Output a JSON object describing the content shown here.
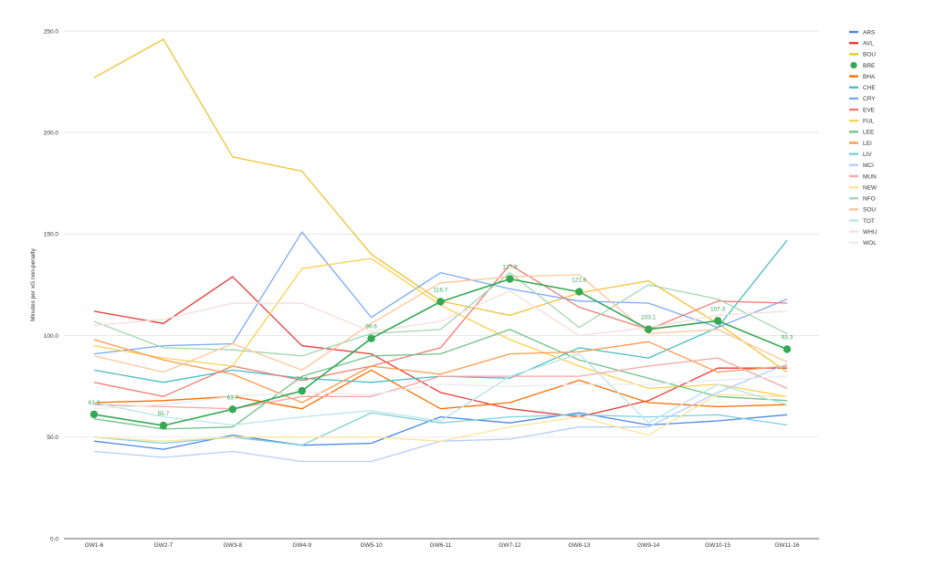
{
  "chart_data": {
    "type": "line",
    "title": "",
    "xlabel": "",
    "ylabel": "Minutes per xG non-penalty",
    "ylim": [
      0,
      250
    ],
    "y_ticks": [
      "0.0",
      "50.0",
      "100.0",
      "150.0",
      "200.0",
      "250.0"
    ],
    "y_tick_values": [
      0,
      50,
      100,
      150,
      200,
      250
    ],
    "grid": true,
    "legend_position": "right",
    "categories": [
      "GW1-6",
      "GW2-7",
      "GW3-8",
      "GW4-9",
      "GW5-10",
      "GW6-11",
      "GW7-12",
      "GW8-13",
      "GW9-14",
      "GW10-15",
      "GW11-16"
    ],
    "highlight_series": "BRE",
    "series": [
      {
        "name": "ARS",
        "color": "#4a86e8",
        "values": [
          48,
          44,
          51,
          46,
          47,
          60,
          57,
          62,
          56,
          58,
          61
        ]
      },
      {
        "name": "AVL",
        "color": "#e53935",
        "values": [
          112,
          106,
          129,
          95,
          91,
          72,
          64,
          60,
          68,
          84,
          84
        ]
      },
      {
        "name": "BOU",
        "color": "#f1c232",
        "values": [
          227,
          246,
          188,
          181,
          140,
          117,
          110,
          121,
          127,
          106,
          82
        ]
      },
      {
        "name": "BRE",
        "color": "#34a853",
        "values": [
          61.2,
          55.7,
          63.7,
          72.8,
          98.6,
          116.7,
          127.9,
          121.6,
          103.1,
          107.3,
          93.3
        ],
        "labels": [
          "61.2",
          "55.7",
          "63.7",
          "72.8",
          "98.6",
          "116.7",
          "127.9",
          "121.6",
          "103.1",
          "107.3",
          "93.3"
        ]
      },
      {
        "name": "BHA",
        "color": "#ff6d01",
        "values": [
          67,
          68,
          70,
          64,
          83,
          64,
          67,
          78,
          67,
          65,
          66
        ]
      },
      {
        "name": "CHE",
        "color": "#46bdc6",
        "values": [
          83,
          77,
          83,
          79,
          77,
          80,
          79,
          94,
          89,
          104,
          147
        ]
      },
      {
        "name": "CRY",
        "color": "#7baaf7",
        "values": [
          91,
          95,
          96,
          151,
          109,
          131,
          123,
          117,
          116,
          104,
          118
        ]
      },
      {
        "name": "EVE",
        "color": "#f07b72",
        "values": [
          77,
          70,
          85,
          78,
          85,
          94,
          135,
          114,
          103,
          117,
          116
        ]
      },
      {
        "name": "FUL",
        "color": "#fcd04f",
        "values": [
          95,
          89,
          85,
          133,
          138,
          115,
          98,
          85,
          74,
          76,
          70
        ]
      },
      {
        "name": "LEE",
        "color": "#71c287",
        "values": [
          59,
          54,
          55,
          80,
          90,
          91,
          103,
          88,
          79,
          70,
          68
        ]
      },
      {
        "name": "LEI",
        "color": "#ff994d",
        "values": [
          98,
          88,
          81,
          67,
          85,
          81,
          91,
          92,
          97,
          82,
          85
        ]
      },
      {
        "name": "LIV",
        "color": "#7ed1d7",
        "values": [
          50,
          47,
          50,
          46,
          62,
          57,
          60,
          61,
          60,
          61,
          56
        ]
      },
      {
        "name": "MCI",
        "color": "#b3cefb",
        "values": [
          43,
          40,
          43,
          38,
          38,
          48,
          49,
          55,
          55,
          72,
          86
        ]
      },
      {
        "name": "MUN",
        "color": "#f7a7a2",
        "values": [
          66,
          65,
          64,
          70,
          70,
          80,
          80,
          80,
          85,
          89,
          74
        ]
      },
      {
        "name": "NEW",
        "color": "#fde49b",
        "values": [
          50,
          48,
          50,
          50,
          50,
          48,
          55,
          60,
          51,
          71,
          70
        ]
      },
      {
        "name": "NFO",
        "color": "#a1d6b0",
        "values": [
          107,
          94,
          93,
          90,
          101,
          103,
          131,
          104,
          125,
          118,
          101
        ]
      },
      {
        "name": "SOU",
        "color": "#ffc599",
        "values": [
          90,
          82,
          96,
          83,
          106,
          126,
          129,
          130,
          101,
          103,
          87
        ]
      },
      {
        "name": "TOT",
        "color": "#b5e5e8",
        "values": [
          67,
          60,
          56,
          60,
          63,
          58,
          80,
          91,
          57,
          76,
          66
        ]
      },
      {
        "name": "WHU",
        "color": "#f8dcd9",
        "values": [
          105,
          108,
          116,
          116,
          102,
          107,
          122,
          100,
          104,
          110,
          112
        ]
      },
      {
        "name": "WOL",
        "color": "#e8eaf3",
        "values": [
          64,
          66,
          70,
          72,
          71,
          76,
          75,
          76,
          76,
          78,
          80
        ]
      }
    ]
  }
}
